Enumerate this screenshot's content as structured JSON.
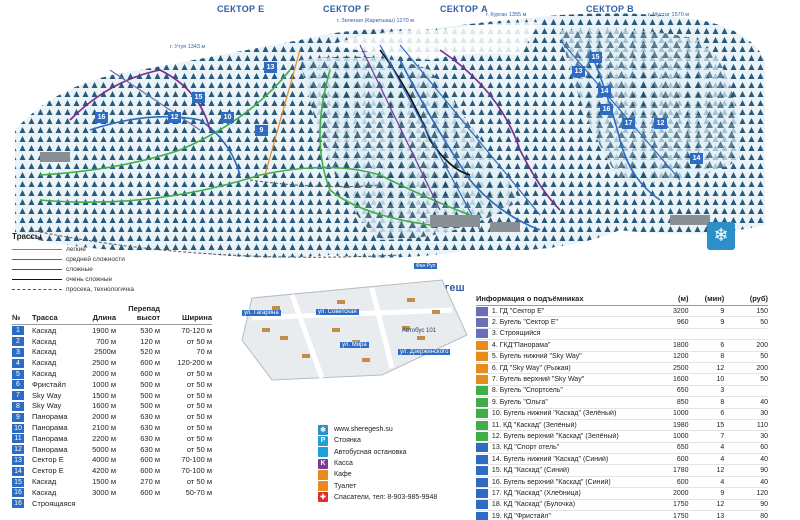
{
  "map": {
    "sectors": [
      {
        "id": "e",
        "label": "СЕКТОР Е"
      },
      {
        "id": "f",
        "label": "СЕКТОР F"
      },
      {
        "id": "a",
        "label": "СЕКТОР А"
      },
      {
        "id": "b",
        "label": "СЕКТОР В"
      }
    ],
    "peaks": [
      {
        "id": "zelenaya",
        "label": "г. Зеленая (Каритшаш) 1270 м"
      },
      {
        "id": "kurgan",
        "label": "г. Курган 1355 м"
      },
      {
        "id": "mustag",
        "label": "г. Мустаг 1570 м"
      },
      {
        "id": "utuy",
        "label": "г. Утуя 1343 м"
      }
    ],
    "village_title": "п. Шерегеш",
    "village_sign": "Фан Рул",
    "streets": [
      "ул. Гагарина",
      "ул. Советская",
      "ул. Дзержинского",
      "ул. Мира",
      "Автобус 101"
    ],
    "trail_numbers_left": [
      "13",
      "16",
      "12",
      "10",
      "9",
      "15"
    ],
    "trail_numbers_right": [
      "15",
      "13",
      "14",
      "16",
      "17",
      "12",
      "14"
    ]
  },
  "trail_legend": {
    "title": "Трассы",
    "items": [
      {
        "label": "легкие",
        "color": "#3fae49"
      },
      {
        "label": "средней сложности",
        "color": "#2d6cc2"
      },
      {
        "label": "сложные",
        "color": "#7a2a8c"
      },
      {
        "label": "очень сложные",
        "color": "#111111"
      },
      {
        "label": "просека, технологичка",
        "color": "#555555",
        "dashed": true
      }
    ]
  },
  "slopes": {
    "headers": {
      "num": "№",
      "name": "Трасса",
      "length": "Длина",
      "drop": "Перепад высот",
      "width": "Ширина"
    },
    "rows": [
      {
        "num": "1",
        "name": "Каскад",
        "length": "1900 м",
        "drop": "530 м",
        "width": "70-120 м"
      },
      {
        "num": "2",
        "name": "Каскад",
        "length": "700 м",
        "drop": "120 м",
        "width": "от 50 м"
      },
      {
        "num": "3",
        "name": "Каскад",
        "length": "2500м",
        "drop": "520 м",
        "width": "70 м"
      },
      {
        "num": "4",
        "name": "Каскад",
        "length": "2500 м",
        "drop": "600 м",
        "width": "120-200 м"
      },
      {
        "num": "5",
        "name": "Каскад",
        "length": "2000 м",
        "drop": "600 м",
        "width": "от 50 м"
      },
      {
        "num": "6",
        "name": "Фристайл",
        "length": "1000 м",
        "drop": "500 м",
        "width": "от 50 м"
      },
      {
        "num": "7",
        "name": "Sky Way",
        "length": "1500 м",
        "drop": "500 м",
        "width": "от 50 м"
      },
      {
        "num": "8",
        "name": "Sky Way",
        "length": "1600 м",
        "drop": "500 м",
        "width": "от 50 м"
      },
      {
        "num": "9",
        "name": "Панорама",
        "length": "2000 м",
        "drop": "630 м",
        "width": "от 50 м"
      },
      {
        "num": "10",
        "name": "Панорама",
        "length": "2100 м",
        "drop": "630 м",
        "width": "от 50 м"
      },
      {
        "num": "11",
        "name": "Панорама",
        "length": "2200 м",
        "drop": "630 м",
        "width": "от 50 м"
      },
      {
        "num": "12",
        "name": "Панорама",
        "length": "5000 м",
        "drop": "630 м",
        "width": "от 50 м"
      },
      {
        "num": "13",
        "name": "Сектор Е",
        "length": "4000 м",
        "drop": "600 м",
        "width": "70-100 м"
      },
      {
        "num": "14",
        "name": "Сектор Е",
        "length": "4200 м",
        "drop": "600 м",
        "width": "70-100 м"
      },
      {
        "num": "15",
        "name": "Каскад",
        "length": "1500 м",
        "drop": "270 м",
        "width": "от 50 м"
      },
      {
        "num": "16",
        "name": "Каскад",
        "length": "3000 м",
        "drop": "600 м",
        "width": "50-70 м"
      },
      {
        "num": "16",
        "name": "Строящаяся",
        "length": "",
        "drop": "",
        "width": ""
      }
    ]
  },
  "services": {
    "website": "www.sheregesh.su",
    "items": [
      {
        "icon": "P",
        "label": "Стоянка",
        "color": "#1fa0d8"
      },
      {
        "icon": "",
        "label": "Автобусная остановка",
        "color": "#1fa0d8"
      },
      {
        "icon": "K",
        "label": "Касса",
        "color": "#7a3a9a"
      },
      {
        "icon": "",
        "label": "Кафе",
        "color": "#e98a1d"
      },
      {
        "icon": "",
        "label": "Туалет",
        "color": "#e98a1d"
      },
      {
        "icon": "✚",
        "label": "Спасатели, тел: 8-903-985-9948",
        "color": "#e32b2b"
      }
    ]
  },
  "lifts": {
    "title": "Информация о подъёмниках",
    "headers": {
      "length": "(м)",
      "minutes": "(мин)",
      "price": "(руб)"
    },
    "rows": [
      {
        "name": "1. ГД \"Сектор Е\"",
        "length": "3200",
        "minutes": "9",
        "price": "150",
        "color": "#6b6fb5"
      },
      {
        "name": "2. Бугель \"Сектор Е\"",
        "length": "960",
        "minutes": "9",
        "price": "50",
        "color": "#6b6fb5"
      },
      {
        "name": "3. Строящийся",
        "length": "",
        "minutes": "",
        "price": "",
        "color": "#6b6fb5"
      },
      {
        "name": "4. ГКД\"Панорама\"",
        "length": "1800",
        "minutes": "6",
        "price": "200",
        "color": "#e98a1d"
      },
      {
        "name": "5. Бугель нижний \"Sky Way\"",
        "length": "1200",
        "minutes": "8",
        "price": "50",
        "color": "#e98a1d"
      },
      {
        "name": "6. ГД \"Sky Way\" (Рыжая)",
        "length": "2500",
        "minutes": "12",
        "price": "200",
        "color": "#e98a1d"
      },
      {
        "name": "7. Бугель верхний \"Sky Way\"",
        "length": "1600",
        "minutes": "10",
        "price": "50",
        "color": "#e98a1d"
      },
      {
        "name": "8. Бугель \"Спортсель\"",
        "length": "650",
        "minutes": "3",
        "price": "",
        "color": "#3fae49"
      },
      {
        "name": "9. Бугель \"Ольга\"",
        "length": "850",
        "minutes": "8",
        "price": "40",
        "color": "#3fae49"
      },
      {
        "name": "10. Бугель нижний \"Каскад\" (Зелёный)",
        "length": "1000",
        "minutes": "6",
        "price": "30",
        "color": "#3fae49"
      },
      {
        "name": "11. КД \"Каскад\" (Зелёный)",
        "length": "1980",
        "minutes": "15",
        "price": "110",
        "color": "#3fae49"
      },
      {
        "name": "12. Бугель верхний \"Каскад\" (Зелёный)",
        "length": "1000",
        "minutes": "7",
        "price": "30",
        "color": "#3fae49"
      },
      {
        "name": "13. КД \"Спорт отель\"",
        "length": "650",
        "minutes": "4",
        "price": "60",
        "color": "#2d6cc2"
      },
      {
        "name": "14. Бугель нижний \"Каскад\" (Синий)",
        "length": "600",
        "minutes": "4",
        "price": "40",
        "color": "#2d6cc2"
      },
      {
        "name": "15. КД \"Каскад\" (Синий)",
        "length": "1780",
        "minutes": "12",
        "price": "90",
        "color": "#2d6cc2"
      },
      {
        "name": "16. Бугель верхний \"Каскад\" (Синий)",
        "length": "600",
        "minutes": "4",
        "price": "40",
        "color": "#2d6cc2"
      },
      {
        "name": "17. КД \"Каскад\" (Хлебница)",
        "length": "2000",
        "minutes": "9",
        "price": "120",
        "color": "#2d6cc2"
      },
      {
        "name": "18. КД \"Каскад\" (Булочка)",
        "length": "1750",
        "minutes": "12",
        "price": "90",
        "color": "#2d6cc2"
      },
      {
        "name": "19. КД \"Фристайл\"",
        "length": "1750",
        "minutes": "13",
        "price": "80",
        "color": "#2d6cc2"
      }
    ]
  }
}
